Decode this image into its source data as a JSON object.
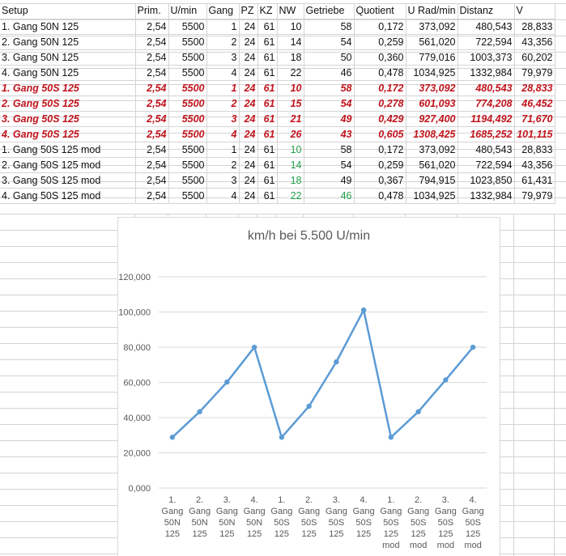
{
  "table": {
    "columns": [
      "Setup",
      "Prim.",
      "U/min",
      "Gang",
      "PZ",
      "KZ",
      "NW",
      "Getriebe",
      "Quotient",
      "U Rad/min",
      "Distanz",
      "V"
    ],
    "rows": [
      {
        "style": "normal",
        "green": [],
        "cells": [
          "1. Gang 50N 125",
          "2,54",
          "5500",
          "1",
          "24",
          "61",
          "10",
          "58",
          "0,172",
          "373,092",
          "480,543",
          "28,833"
        ]
      },
      {
        "style": "normal",
        "green": [],
        "cells": [
          "2. Gang 50N 125",
          "2,54",
          "5500",
          "2",
          "24",
          "61",
          "14",
          "54",
          "0,259",
          "561,020",
          "722,594",
          "43,356"
        ]
      },
      {
        "style": "normal",
        "green": [],
        "cells": [
          "3. Gang 50N 125",
          "2,54",
          "5500",
          "3",
          "24",
          "61",
          "18",
          "50",
          "0,360",
          "779,016",
          "1003,373",
          "60,202"
        ]
      },
      {
        "style": "normal",
        "green": [],
        "cells": [
          "4. Gang 50N 125",
          "2,54",
          "5500",
          "4",
          "24",
          "61",
          "22",
          "46",
          "0,478",
          "1034,925",
          "1332,984",
          "79,979"
        ]
      },
      {
        "style": "red",
        "green": [],
        "cells": [
          "1. Gang 50S 125",
          "2,54",
          "5500",
          "1",
          "24",
          "61",
          "10",
          "58",
          "0,172",
          "373,092",
          "480,543",
          "28,833"
        ]
      },
      {
        "style": "red",
        "green": [],
        "cells": [
          "2. Gang 50S 125",
          "2,54",
          "5500",
          "2",
          "24",
          "61",
          "15",
          "54",
          "0,278",
          "601,093",
          "774,208",
          "46,452"
        ]
      },
      {
        "style": "red",
        "green": [],
        "cells": [
          "3. Gang 50S 125",
          "2,54",
          "5500",
          "3",
          "24",
          "61",
          "21",
          "49",
          "0,429",
          "927,400",
          "1194,492",
          "71,670"
        ]
      },
      {
        "style": "red",
        "green": [],
        "cells": [
          "4. Gang 50S 125",
          "2,54",
          "5500",
          "4",
          "24",
          "61",
          "26",
          "43",
          "0,605",
          "1308,425",
          "1685,252",
          "101,115"
        ]
      },
      {
        "style": "normal",
        "green": [
          6
        ],
        "cells": [
          "1. Gang 50S 125 mod",
          "2,54",
          "5500",
          "1",
          "24",
          "61",
          "10",
          "58",
          "0,172",
          "373,092",
          "480,543",
          "28,833"
        ]
      },
      {
        "style": "normal",
        "green": [
          6
        ],
        "cells": [
          "2. Gang 50S 125 mod",
          "2,54",
          "5500",
          "2",
          "24",
          "61",
          "14",
          "54",
          "0,259",
          "561,020",
          "722,594",
          "43,356"
        ]
      },
      {
        "style": "normal",
        "green": [
          6
        ],
        "cells": [
          "3. Gang 50S 125 mod",
          "2,54",
          "5500",
          "3",
          "24",
          "61",
          "18",
          "49",
          "0,367",
          "794,915",
          "1023,850",
          "61,431"
        ]
      },
      {
        "style": "normal",
        "green": [
          6,
          7
        ],
        "cells": [
          "4. Gang 50S 125 mod",
          "2,54",
          "5500",
          "4",
          "24",
          "61",
          "22",
          "46",
          "0,478",
          "1034,925",
          "1332,984",
          "79,979"
        ]
      }
    ]
  },
  "colors": {
    "red": "#c0141c",
    "green": "#22a04b",
    "series": "#5b9bd5"
  },
  "chart_data": {
    "type": "line",
    "title": "km/h bei 5.500 U/min",
    "categories": [
      [
        "1.",
        "Gang",
        "50N",
        "125"
      ],
      [
        "2.",
        "Gang",
        "50N",
        "125"
      ],
      [
        "3.",
        "Gang",
        "50N",
        "125"
      ],
      [
        "4.",
        "Gang",
        "50N",
        "125"
      ],
      [
        "1.",
        "Gang",
        "50S",
        "125"
      ],
      [
        "2.",
        "Gang",
        "50S",
        "125"
      ],
      [
        "3.",
        "Gang",
        "50S",
        "125"
      ],
      [
        "4.",
        "Gang",
        "50S",
        "125"
      ],
      [
        "1.",
        "Gang",
        "50S",
        "125",
        "mod"
      ],
      [
        "2.",
        "Gang",
        "50S",
        "125",
        "mod"
      ],
      [
        "3.",
        "Gang",
        "50S",
        "125",
        "mod"
      ],
      [
        "4.",
        "Gang",
        "50S",
        "125",
        "mod"
      ]
    ],
    "values": [
      28.833,
      43.356,
      60.202,
      79.979,
      28.833,
      46.452,
      71.67,
      101.115,
      28.833,
      43.356,
      61.431,
      79.979
    ],
    "yticks": [
      "0,000",
      "20,000",
      "40,000",
      "60,000",
      "80,000",
      "100,000",
      "120,000"
    ],
    "ylim": [
      0,
      120
    ],
    "grid": true,
    "legend": "none"
  }
}
